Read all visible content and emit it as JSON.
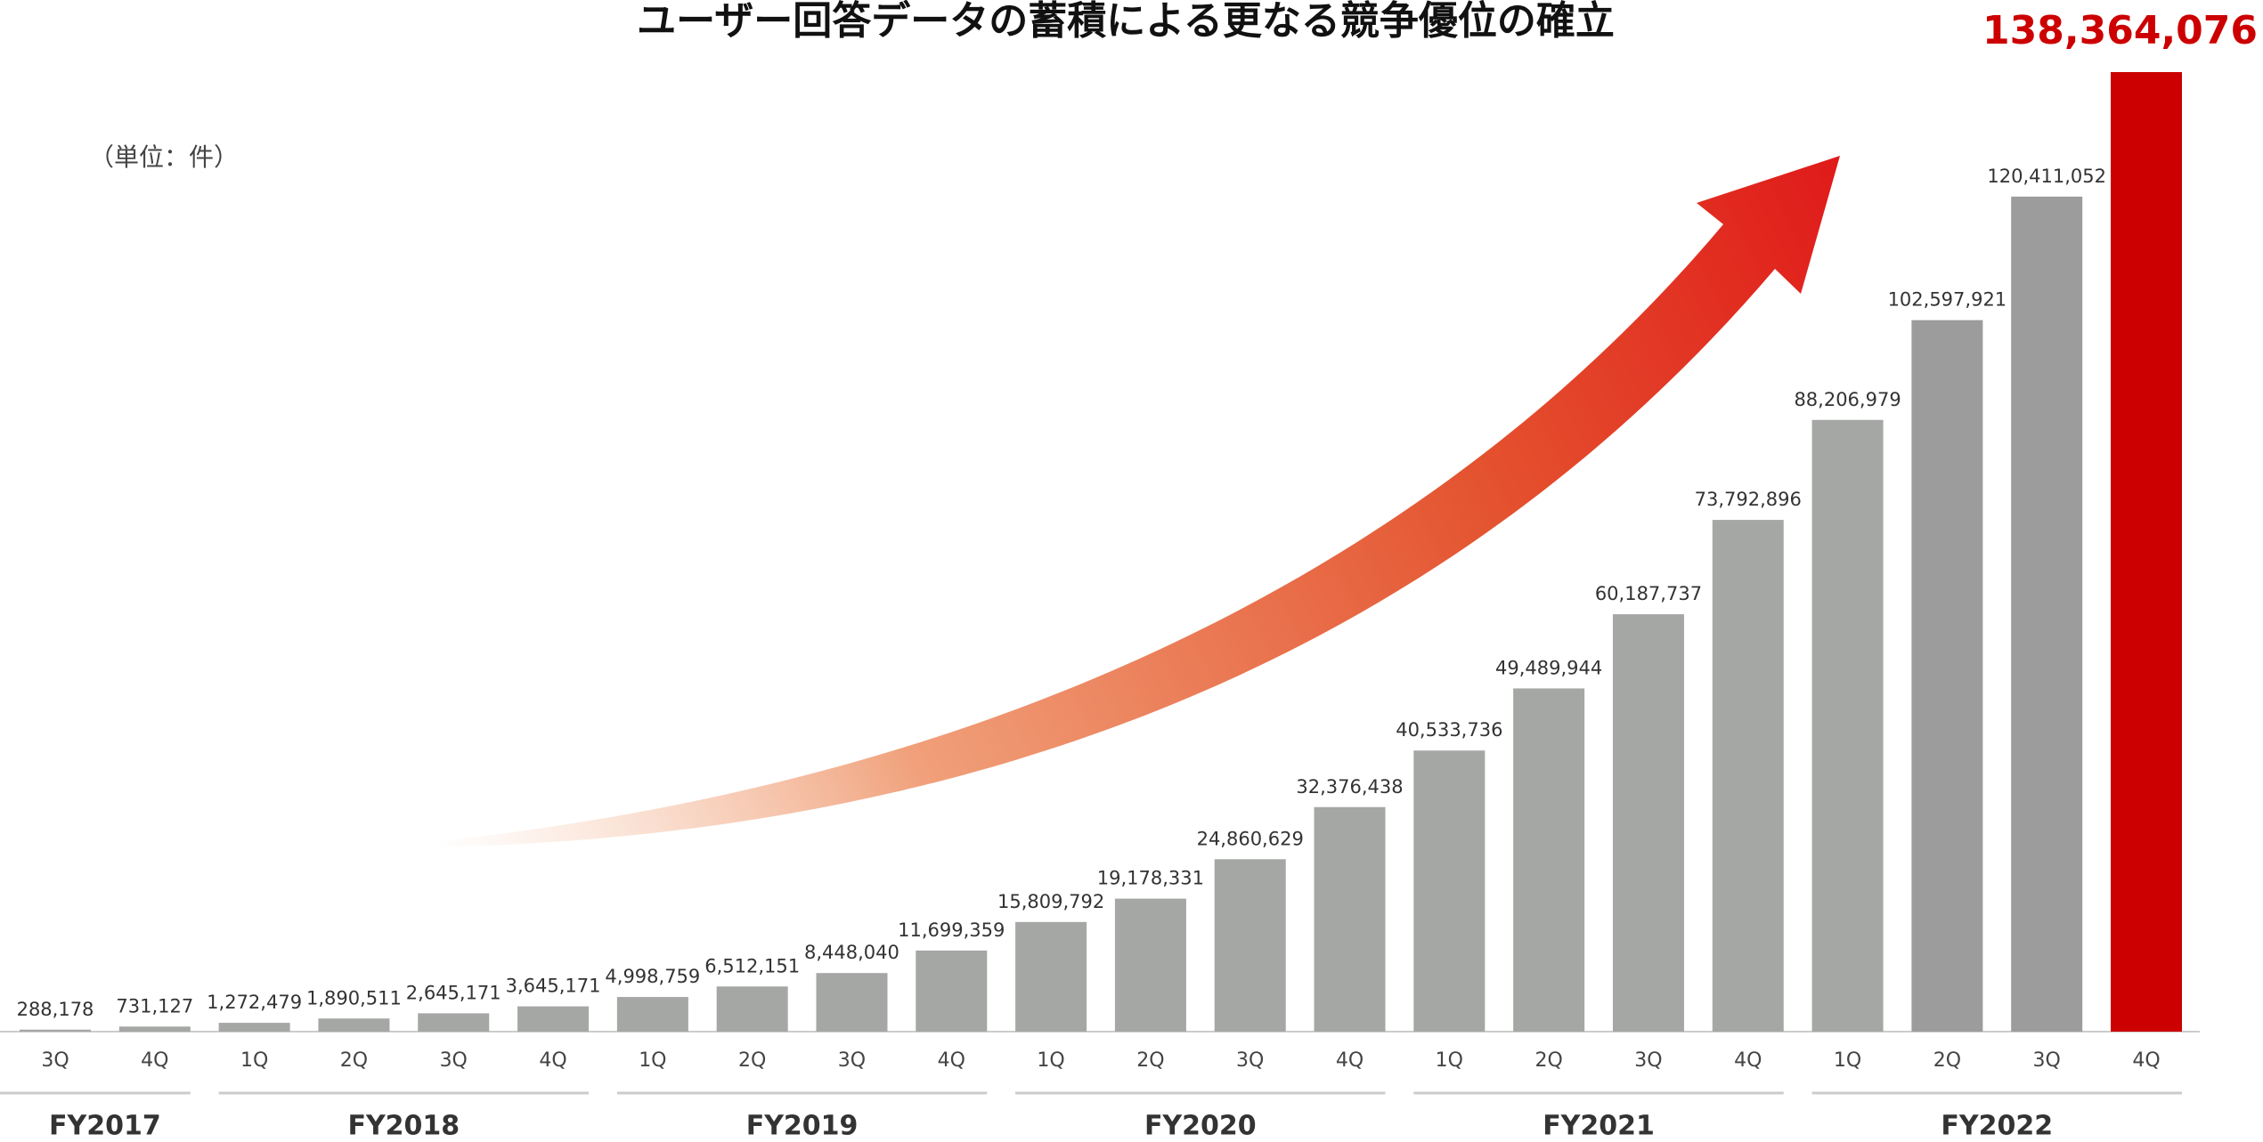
{
  "chart_data": {
    "type": "bar",
    "title": "ユーザー回答データの蓄積による更なる競争優位の確立",
    "unit_label": "（単位：件）",
    "categories": [
      "3Q",
      "4Q",
      "1Q",
      "2Q",
      "3Q",
      "4Q",
      "1Q",
      "2Q",
      "3Q",
      "4Q",
      "1Q",
      "2Q",
      "3Q",
      "4Q",
      "1Q",
      "2Q",
      "3Q",
      "4Q",
      "1Q",
      "2Q",
      "3Q",
      "4Q"
    ],
    "values": [
      288178,
      731127,
      1272479,
      1890511,
      2645171,
      3645171,
      4998759,
      6512151,
      8448040,
      11699359,
      15809792,
      19178331,
      24860629,
      32376438,
      40533736,
      49489944,
      60187737,
      73792896,
      88206979,
      102597921,
      120411052,
      138364076
    ],
    "value_labels": [
      "288,178",
      "731,127",
      "1,272,479",
      "1,890,511",
      "2,645,171",
      "3,645,171",
      "4,998,759",
      "6,512,151",
      "8,448,040",
      "11,699,359",
      "15,809,792",
      "19,178,331",
      "24,860,629",
      "32,376,438",
      "40,533,736",
      "49,489,944",
      "60,187,737",
      "73,792,896",
      "88,206,979",
      "102,597,921",
      "120,411,052",
      "138,364,076"
    ],
    "colors": [
      "#a5a7a5",
      "#a5a7a5",
      "#a5a7a5",
      "#a5a7a5",
      "#a5a7a5",
      "#a5a7a5",
      "#a5a7a5",
      "#a5a7a5",
      "#a5a7a5",
      "#a5a7a5",
      "#a5a7a5",
      "#a5a7a5",
      "#a5a7a5",
      "#a5a7a5",
      "#a5a7a5",
      "#a5a7a5",
      "#a5a7a5",
      "#a5a7a5",
      "#a5a7a5",
      "#9b9c9b",
      "#9b9c9b",
      "#cc0000"
    ],
    "groups": [
      {
        "name": "FY2017",
        "count": 2
      },
      {
        "name": "FY2018",
        "count": 4
      },
      {
        "name": "FY2019",
        "count": 4
      },
      {
        "name": "FY2020",
        "count": 4
      },
      {
        "name": "FY2021",
        "count": 4
      },
      {
        "name": "FY2022",
        "count": 4
      }
    ]
  }
}
